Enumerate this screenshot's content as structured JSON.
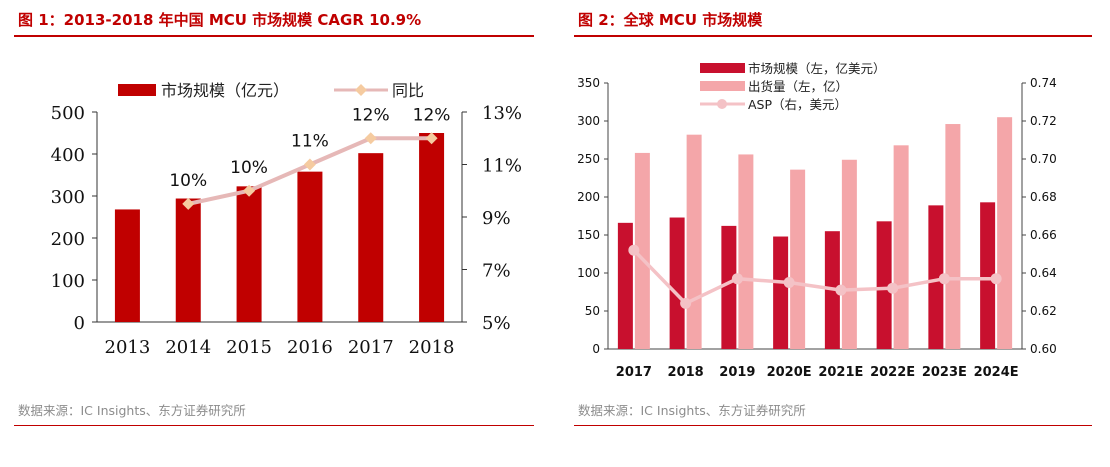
{
  "figure1": {
    "title": "图 1：2013-2018 年中国 MCU 市场规模 CAGR 10.9%",
    "source": "数据来源：IC Insights、东方证券研究所",
    "colors": {
      "bar": "#c00000",
      "line": "#e6b8b7",
      "marker": "#f5cba0"
    }
  },
  "figure2": {
    "title": "图 2：全球 MCU 市场规模",
    "source": "数据来源：IC Insights、东方证券研究所",
    "colors": {
      "bar1": "#c8102e",
      "bar2": "#f4a6a9",
      "line": "#f4c2c6"
    }
  },
  "chart_data": [
    {
      "type": "bar",
      "categories": [
        "2013",
        "2014",
        "2015",
        "2016",
        "2017",
        "2018"
      ],
      "series": [
        {
          "name": "市场规模（亿元）",
          "values": [
            268,
            294,
            323,
            358,
            402,
            450
          ],
          "axis": "left",
          "kind": "bar"
        },
        {
          "name": "同比",
          "values": [
            null,
            9.5,
            10,
            11,
            12,
            12
          ],
          "axis": "right",
          "kind": "line",
          "data_labels": [
            "",
            "10%",
            "10%",
            "11%",
            "12%",
            "12%"
          ]
        }
      ],
      "ylim": [
        0,
        500
      ],
      "yticks": [
        "0",
        "100",
        "200",
        "300",
        "400",
        "500"
      ],
      "y2lim": [
        5,
        13
      ],
      "y2ticks": [
        "5%",
        "7%",
        "9%",
        "11%",
        "13%"
      ],
      "grid": false,
      "legend": "top"
    },
    {
      "type": "bar",
      "categories": [
        "2017",
        "2018",
        "2019",
        "2020E",
        "2021E",
        "2022E",
        "2023E",
        "2024E"
      ],
      "series": [
        {
          "name": "市场规模（左，亿美元）",
          "values": [
            166,
            173,
            162,
            148,
            155,
            168,
            189,
            193
          ],
          "axis": "left",
          "kind": "bar"
        },
        {
          "name": "出货量（左，亿）",
          "values": [
            258,
            282,
            256,
            236,
            249,
            268,
            296,
            305
          ],
          "axis": "left",
          "kind": "bar"
        },
        {
          "name": "ASP（右，美元）",
          "values": [
            0.652,
            0.624,
            0.637,
            0.635,
            0.631,
            0.632,
            0.637,
            0.637
          ],
          "axis": "right",
          "kind": "line"
        }
      ],
      "ylim": [
        0,
        350
      ],
      "yticks": [
        "0",
        "50",
        "100",
        "150",
        "200",
        "250",
        "300",
        "350"
      ],
      "y2lim": [
        0.6,
        0.74
      ],
      "y2ticks": [
        "0.60",
        "0.62",
        "0.64",
        "0.66",
        "0.68",
        "0.70",
        "0.72",
        "0.74"
      ],
      "grid": false,
      "legend": "top"
    }
  ]
}
